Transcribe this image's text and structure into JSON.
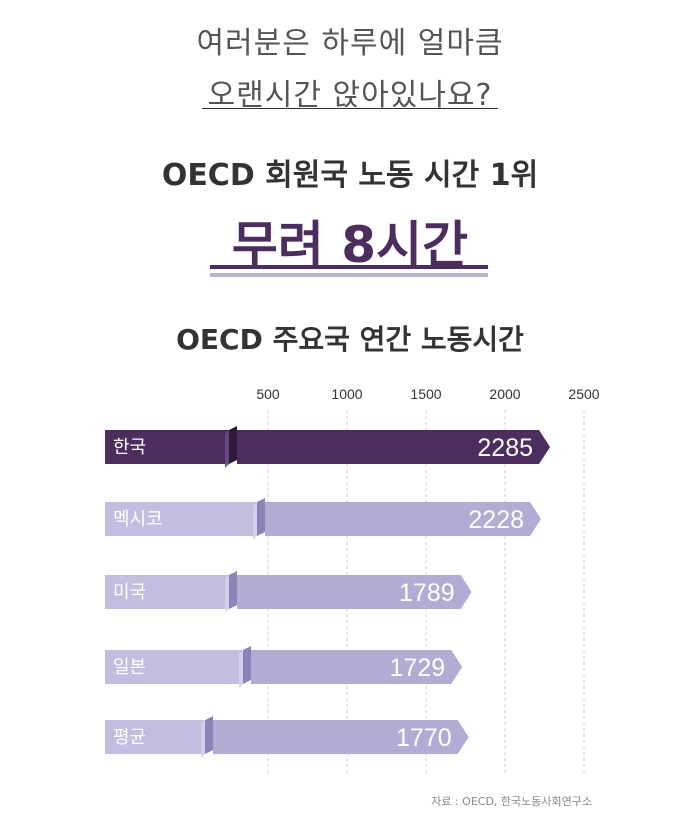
{
  "header": {
    "question_line1": "여러분은 하루에 얼마큼",
    "question_line2": "오랜시간 앉아있나요?",
    "subtitle": "OECD 회원국 노동 시간 1위",
    "headline": "무려 8시간"
  },
  "source": "자료 : OECD, 한국노동사회연구소",
  "colors": {
    "highlight_bar": "#4b2d5e",
    "bar": "#b2abd4",
    "bar_light": "#c3bde0",
    "accent": "#4b2d5e",
    "grid": "#cccccc"
  },
  "chart_data": {
    "type": "bar",
    "orientation": "horizontal",
    "title": "OECD 주요국 연간 노동시간",
    "categories": [
      "한국",
      "멕시코",
      "미국",
      "일본",
      "평균"
    ],
    "values": [
      2285,
      2228,
      1789,
      1729,
      1770
    ],
    "value_labels": [
      "2285",
      "2228",
      "1789",
      "1729",
      "1770"
    ],
    "xticks": [
      "500",
      "1000",
      "1500",
      "2000",
      "2500"
    ],
    "xlim": [
      0,
      2500
    ],
    "axis_broken": true,
    "highlighted_category": "한국",
    "grid": "vertical-dashed",
    "legend": "none"
  }
}
